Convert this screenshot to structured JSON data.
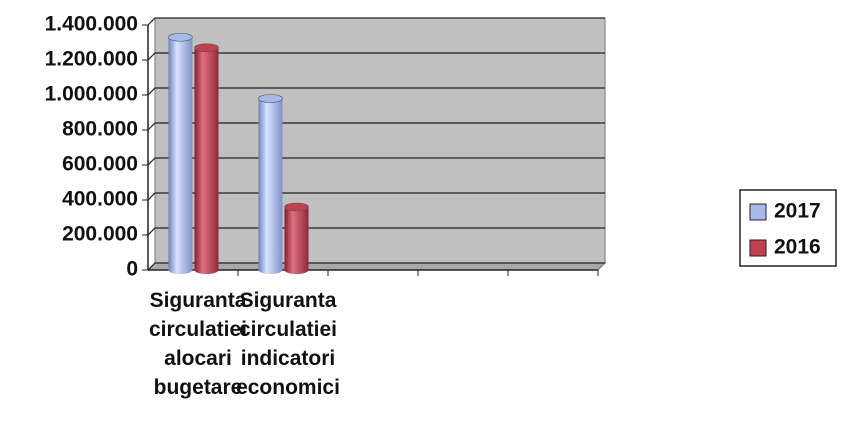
{
  "chart_data": {
    "type": "bar3d",
    "categories": [
      "Siguranta circulatiei alocari bugetare",
      "Siguranta circulatiei indicatori economici",
      null,
      null,
      null
    ],
    "series": [
      {
        "name": "2017",
        "color": "#a7b9e9",
        "values": [
          1330000,
          980000,
          null,
          null,
          null
        ]
      },
      {
        "name": "2016",
        "color": "#c0404f",
        "values": [
          1270000,
          360000,
          null,
          null,
          null
        ]
      }
    ],
    "ylim": [
      0,
      1400000
    ],
    "yticks": [
      0,
      {
        "value": 200000,
        "label": "200.000"
      },
      {
        "value": 400000,
        "label": "400.000"
      },
      {
        "value": 600000,
        "label": "600.000"
      },
      {
        "value": 800000,
        "label": "800.000"
      },
      {
        "value": 1000000,
        "label": "1.000.000"
      },
      {
        "value": 1200000,
        "label": "1.200.000"
      },
      {
        "value": 1400000,
        "label": "1.400.000"
      }
    ],
    "grid": true,
    "legend": "right"
  }
}
